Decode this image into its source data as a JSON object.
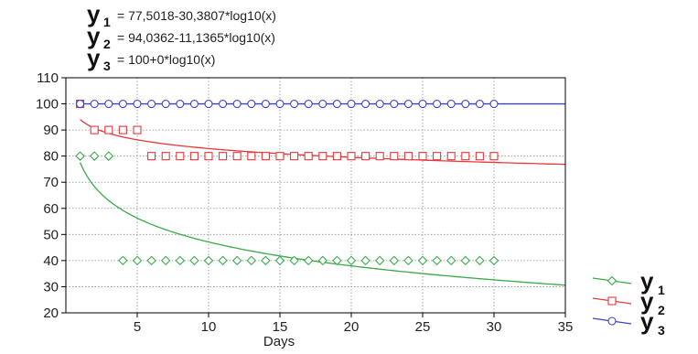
{
  "chart_data": {
    "type": "scatter",
    "equations": [
      {
        "var": "y",
        "sub": "1",
        "rhs": "= 77,5018-30,3807*log10(x)"
      },
      {
        "var": "y",
        "sub": "2",
        "rhs": "= 94,0362-11,1365*log10(x)"
      },
      {
        "var": "y",
        "sub": "3",
        "rhs": "= 100+0*log10(x)"
      }
    ],
    "xlabel": "Days",
    "ylabel": "",
    "xlim": [
      0,
      35
    ],
    "ylim": [
      20,
      110
    ],
    "xticks": [
      5,
      10,
      15,
      20,
      25,
      30,
      35
    ],
    "yticks": [
      20,
      30,
      40,
      50,
      60,
      70,
      80,
      90,
      100,
      110
    ],
    "grid": true,
    "legend_position": "right",
    "series": [
      {
        "name": "y1",
        "legend_var": "y",
        "legend_sub": "1",
        "color": "#3aaa4a",
        "marker": "diamond",
        "points": [
          {
            "x": 1,
            "y": 80
          },
          {
            "x": 2,
            "y": 80
          },
          {
            "x": 3,
            "y": 80
          },
          {
            "x": 4,
            "y": 40
          },
          {
            "x": 5,
            "y": 40
          },
          {
            "x": 6,
            "y": 40
          },
          {
            "x": 7,
            "y": 40
          },
          {
            "x": 8,
            "y": 40
          },
          {
            "x": 9,
            "y": 40
          },
          {
            "x": 10,
            "y": 40
          },
          {
            "x": 11,
            "y": 40
          },
          {
            "x": 12,
            "y": 40
          },
          {
            "x": 13,
            "y": 40
          },
          {
            "x": 14,
            "y": 40
          },
          {
            "x": 15,
            "y": 40
          },
          {
            "x": 16,
            "y": 40
          },
          {
            "x": 17,
            "y": 40
          },
          {
            "x": 18,
            "y": 40
          },
          {
            "x": 19,
            "y": 40
          },
          {
            "x": 20,
            "y": 40
          },
          {
            "x": 21,
            "y": 40
          },
          {
            "x": 22,
            "y": 40
          },
          {
            "x": 23,
            "y": 40
          },
          {
            "x": 24,
            "y": 40
          },
          {
            "x": 25,
            "y": 40
          },
          {
            "x": 26,
            "y": 40
          },
          {
            "x": 27,
            "y": 40
          },
          {
            "x": 28,
            "y": 40
          },
          {
            "x": 29,
            "y": 40
          },
          {
            "x": 30,
            "y": 40
          }
        ],
        "fit": {
          "a": 77.5018,
          "b": -30.3807
        }
      },
      {
        "name": "y2",
        "legend_var": "y",
        "legend_sub": "2",
        "color": "#e8383c",
        "marker": "square",
        "points": [
          {
            "x": 1,
            "y": 100
          },
          {
            "x": 2,
            "y": 90
          },
          {
            "x": 3,
            "y": 90
          },
          {
            "x": 4,
            "y": 90
          },
          {
            "x": 5,
            "y": 90
          },
          {
            "x": 6,
            "y": 80
          },
          {
            "x": 7,
            "y": 80
          },
          {
            "x": 8,
            "y": 80
          },
          {
            "x": 9,
            "y": 80
          },
          {
            "x": 10,
            "y": 80
          },
          {
            "x": 11,
            "y": 80
          },
          {
            "x": 12,
            "y": 80
          },
          {
            "x": 13,
            "y": 80
          },
          {
            "x": 14,
            "y": 80
          },
          {
            "x": 15,
            "y": 80
          },
          {
            "x": 16,
            "y": 80
          },
          {
            "x": 17,
            "y": 80
          },
          {
            "x": 18,
            "y": 80
          },
          {
            "x": 19,
            "y": 80
          },
          {
            "x": 20,
            "y": 80
          },
          {
            "x": 21,
            "y": 80
          },
          {
            "x": 22,
            "y": 80
          },
          {
            "x": 23,
            "y": 80
          },
          {
            "x": 24,
            "y": 80
          },
          {
            "x": 25,
            "y": 80
          },
          {
            "x": 26,
            "y": 80
          },
          {
            "x": 27,
            "y": 80
          },
          {
            "x": 28,
            "y": 80
          },
          {
            "x": 29,
            "y": 80
          },
          {
            "x": 30,
            "y": 80
          }
        ],
        "fit": {
          "a": 94.0362,
          "b": -11.1365
        }
      },
      {
        "name": "y3",
        "legend_var": "y",
        "legend_sub": "3",
        "color": "#3a44c8",
        "marker": "circle",
        "points": [
          {
            "x": 1,
            "y": 100
          },
          {
            "x": 2,
            "y": 100
          },
          {
            "x": 3,
            "y": 100
          },
          {
            "x": 4,
            "y": 100
          },
          {
            "x": 5,
            "y": 100
          },
          {
            "x": 6,
            "y": 100
          },
          {
            "x": 7,
            "y": 100
          },
          {
            "x": 8,
            "y": 100
          },
          {
            "x": 9,
            "y": 100
          },
          {
            "x": 10,
            "y": 100
          },
          {
            "x": 11,
            "y": 100
          },
          {
            "x": 12,
            "y": 100
          },
          {
            "x": 13,
            "y": 100
          },
          {
            "x": 14,
            "y": 100
          },
          {
            "x": 15,
            "y": 100
          },
          {
            "x": 16,
            "y": 100
          },
          {
            "x": 17,
            "y": 100
          },
          {
            "x": 18,
            "y": 100
          },
          {
            "x": 19,
            "y": 100
          },
          {
            "x": 20,
            "y": 100
          },
          {
            "x": 21,
            "y": 100
          },
          {
            "x": 22,
            "y": 100
          },
          {
            "x": 23,
            "y": 100
          },
          {
            "x": 24,
            "y": 100
          },
          {
            "x": 25,
            "y": 100
          },
          {
            "x": 26,
            "y": 100
          },
          {
            "x": 27,
            "y": 100
          },
          {
            "x": 28,
            "y": 100
          },
          {
            "x": 29,
            "y": 100
          },
          {
            "x": 30,
            "y": 100
          }
        ],
        "fit": {
          "a": 100,
          "b": 0
        }
      }
    ]
  }
}
